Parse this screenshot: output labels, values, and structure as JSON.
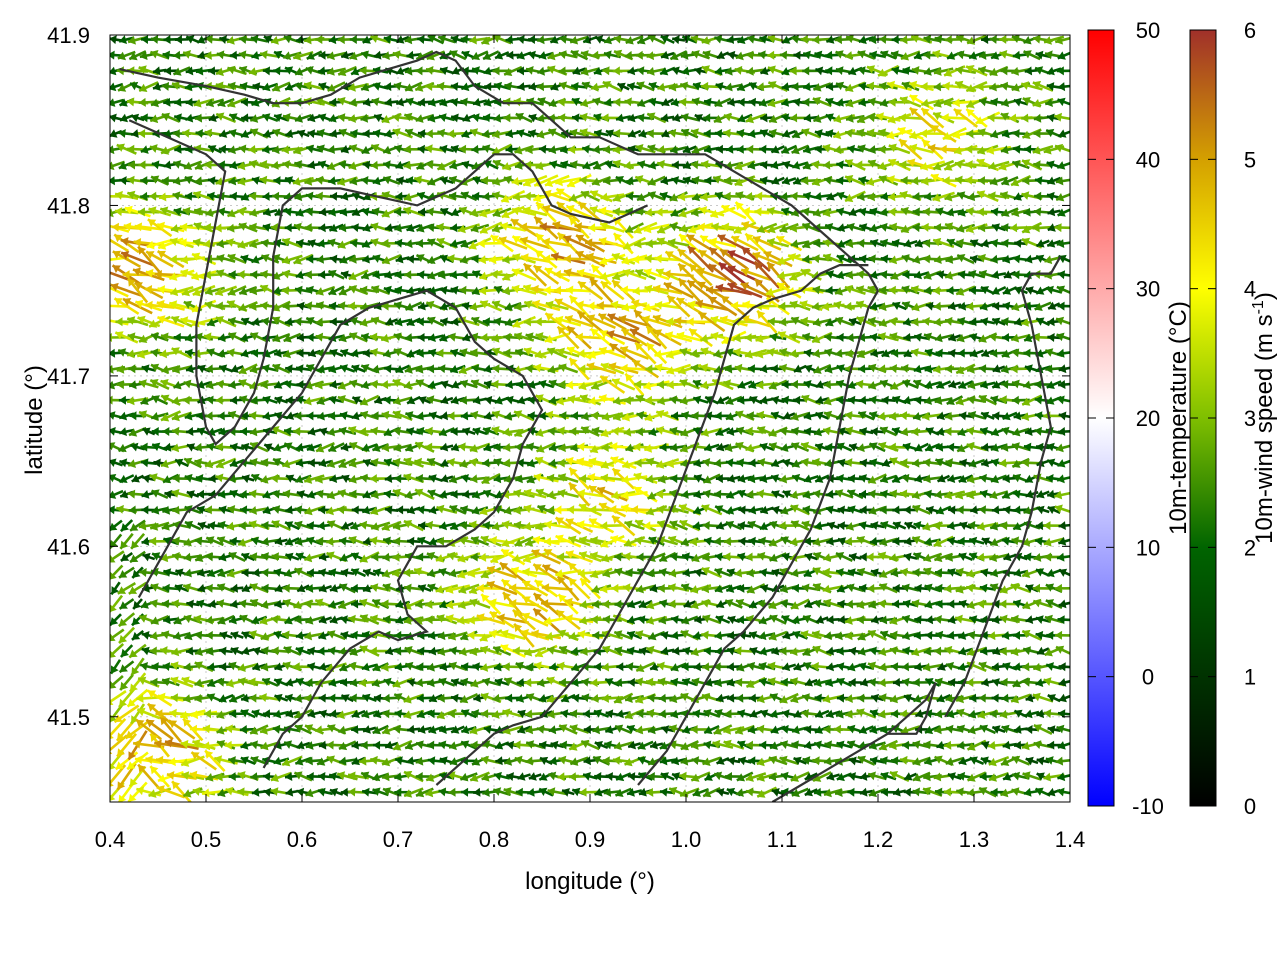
{
  "chart_data": {
    "type": "vector-field",
    "xlabel": "longitude (°)",
    "ylabel": "latitude (°)",
    "xlim": [
      0.4,
      1.4
    ],
    "ylim": [
      41.45,
      41.9
    ],
    "x_ticks": [
      "0.4",
      "0.5",
      "0.6",
      "0.7",
      "0.8",
      "0.9",
      "1.0",
      "1.1",
      "1.2",
      "1.3",
      "1.4"
    ],
    "y_ticks": [
      "41.5",
      "41.6",
      "41.7",
      "41.8",
      "41.9"
    ],
    "grid": true,
    "series": [
      {
        "colorbar_label": "10m-temperature (°C)",
        "range": [
          -10,
          50
        ],
        "ticks": [
          "-10",
          "0",
          "10",
          "20",
          "30",
          "40",
          "50"
        ],
        "colors": [
          "#0000ff",
          "#ffffff",
          "#ff0000"
        ]
      },
      {
        "colorbar_label_main": "10m-wind speed (m s",
        "colorbar_label_sup": "-1",
        "colorbar_label_end": ")",
        "range": [
          0,
          6
        ],
        "ticks": [
          "0",
          "1",
          "2",
          "3",
          "4",
          "5",
          "6"
        ],
        "colors": [
          "#000000",
          "#006400",
          "#7fbf00",
          "#ffff00",
          "#d4a000",
          "#a0302a"
        ]
      }
    ],
    "wind_field": {
      "grid_step_deg": 0.0115,
      "prevailing_direction": "westward",
      "strong_zones": [
        {
          "lon": 0.87,
          "lat": 41.78,
          "speed": 5.0
        },
        {
          "lon": 1.05,
          "lat": 41.76,
          "speed": 5.6
        },
        {
          "lon": 0.43,
          "lat": 41.76,
          "speed": 5.2
        },
        {
          "lon": 0.93,
          "lat": 41.72,
          "speed": 4.8
        },
        {
          "lon": 0.45,
          "lat": 41.48,
          "speed": 5.0
        },
        {
          "lon": 0.84,
          "lat": 41.57,
          "speed": 4.8
        },
        {
          "lon": 0.92,
          "lat": 41.63,
          "speed": 4.2
        },
        {
          "lon": 1.26,
          "lat": 41.84,
          "speed": 4.2
        }
      ],
      "base_speed": 2.2
    },
    "contours": [
      [
        [
          0.41,
          41.88
        ],
        [
          0.45,
          41.875
        ],
        [
          0.5,
          41.87
        ],
        [
          0.54,
          41.865
        ],
        [
          0.57,
          41.86
        ],
        [
          0.6,
          41.86
        ],
        [
          0.63,
          41.865
        ],
        [
          0.66,
          41.875
        ],
        [
          0.69,
          41.88
        ],
        [
          0.72,
          41.885
        ],
        [
          0.74,
          41.89
        ],
        [
          0.76,
          41.885
        ],
        [
          0.78,
          41.87
        ],
        [
          0.81,
          41.86
        ],
        [
          0.84,
          41.86
        ],
        [
          0.86,
          41.85
        ],
        [
          0.88,
          41.84
        ],
        [
          0.91,
          41.84
        ],
        [
          0.95,
          41.83
        ],
        [
          0.99,
          41.83
        ],
        [
          1.02,
          41.83
        ],
        [
          1.05,
          41.82
        ],
        [
          1.08,
          41.81
        ],
        [
          1.11,
          41.8
        ],
        [
          1.13,
          41.79
        ],
        [
          1.15,
          41.78
        ],
        [
          1.17,
          41.77
        ],
        [
          1.19,
          41.76
        ],
        [
          1.2,
          41.75
        ]
      ],
      [
        [
          0.42,
          41.85
        ],
        [
          0.46,
          41.84
        ],
        [
          0.5,
          41.83
        ],
        [
          0.52,
          41.82
        ],
        [
          0.51,
          41.79
        ],
        [
          0.5,
          41.76
        ],
        [
          0.49,
          41.73
        ],
        [
          0.49,
          41.7
        ],
        [
          0.5,
          41.67
        ],
        [
          0.51,
          41.66
        ],
        [
          0.53,
          41.67
        ],
        [
          0.55,
          41.69
        ],
        [
          0.56,
          41.71
        ],
        [
          0.57,
          41.74
        ],
        [
          0.57,
          41.77
        ],
        [
          0.58,
          41.8
        ],
        [
          0.6,
          41.81
        ],
        [
          0.64,
          41.81
        ],
        [
          0.68,
          41.805
        ],
        [
          0.72,
          41.8
        ],
        [
          0.76,
          41.81
        ],
        [
          0.78,
          41.82
        ],
        [
          0.8,
          41.83
        ],
        [
          0.82,
          41.83
        ],
        [
          0.84,
          41.82
        ],
        [
          0.86,
          41.8
        ],
        [
          0.88,
          41.795
        ],
        [
          0.92,
          41.79
        ],
        [
          0.96,
          41.8
        ]
      ],
      [
        [
          0.43,
          41.57
        ],
        [
          0.45,
          41.59
        ],
        [
          0.47,
          41.61
        ],
        [
          0.48,
          41.62
        ],
        [
          0.51,
          41.63
        ],
        [
          0.54,
          41.65
        ],
        [
          0.57,
          41.67
        ],
        [
          0.6,
          41.69
        ],
        [
          0.62,
          41.71
        ],
        [
          0.64,
          41.73
        ],
        [
          0.67,
          41.74
        ],
        [
          0.7,
          41.745
        ],
        [
          0.73,
          41.75
        ],
        [
          0.76,
          41.74
        ],
        [
          0.78,
          41.72
        ],
        [
          0.8,
          41.71
        ],
        [
          0.83,
          41.7
        ],
        [
          0.85,
          41.68
        ],
        [
          0.83,
          41.66
        ],
        [
          0.82,
          41.64
        ],
        [
          0.8,
          41.62
        ],
        [
          0.78,
          41.61
        ],
        [
          0.75,
          41.6
        ],
        [
          0.72,
          41.6
        ],
        [
          0.7,
          41.58
        ],
        [
          0.71,
          41.56
        ],
        [
          0.73,
          41.55
        ],
        [
          0.7,
          41.545
        ],
        [
          0.68,
          41.55
        ],
        [
          0.65,
          41.54
        ],
        [
          0.62,
          41.52
        ],
        [
          0.6,
          41.5
        ],
        [
          0.58,
          41.49
        ],
        [
          0.56,
          41.47
        ]
      ],
      [
        [
          0.74,
          41.46
        ],
        [
          0.76,
          41.47
        ],
        [
          0.78,
          41.48
        ],
        [
          0.8,
          41.49
        ],
        [
          0.82,
          41.495
        ],
        [
          0.85,
          41.5
        ],
        [
          0.88,
          41.52
        ],
        [
          0.91,
          41.54
        ],
        [
          0.93,
          41.56
        ],
        [
          0.95,
          41.58
        ],
        [
          0.97,
          41.6
        ],
        [
          0.99,
          41.63
        ],
        [
          1.01,
          41.66
        ],
        [
          1.03,
          41.69
        ],
        [
          1.04,
          41.71
        ],
        [
          1.05,
          41.73
        ],
        [
          1.07,
          41.74
        ],
        [
          1.09,
          41.745
        ],
        [
          1.12,
          41.75
        ],
        [
          1.14,
          41.76
        ],
        [
          1.16,
          41.765
        ],
        [
          1.19,
          41.765
        ]
      ],
      [
        [
          0.95,
          41.46
        ],
        [
          0.98,
          41.48
        ],
        [
          1.0,
          41.5
        ],
        [
          1.02,
          41.52
        ],
        [
          1.04,
          41.54
        ],
        [
          1.06,
          41.55
        ],
        [
          1.09,
          41.57
        ],
        [
          1.11,
          41.59
        ],
        [
          1.13,
          41.61
        ],
        [
          1.15,
          41.64
        ],
        [
          1.16,
          41.67
        ],
        [
          1.17,
          41.7
        ],
        [
          1.18,
          41.72
        ],
        [
          1.19,
          41.74
        ],
        [
          1.2,
          41.75
        ]
      ],
      [
        [
          1.09,
          41.45
        ],
        [
          1.12,
          41.46
        ],
        [
          1.15,
          41.47
        ],
        [
          1.18,
          41.48
        ],
        [
          1.21,
          41.49
        ],
        [
          1.23,
          41.5
        ],
        [
          1.25,
          41.51
        ],
        [
          1.26,
          41.52
        ],
        [
          1.25,
          41.5
        ],
        [
          1.24,
          41.49
        ],
        [
          1.21,
          41.49
        ]
      ],
      [
        [
          1.27,
          41.5
        ],
        [
          1.29,
          41.52
        ],
        [
          1.31,
          41.55
        ],
        [
          1.33,
          41.58
        ],
        [
          1.35,
          41.6
        ],
        [
          1.36,
          41.62
        ],
        [
          1.37,
          41.65
        ],
        [
          1.38,
          41.67
        ],
        [
          1.37,
          41.7
        ],
        [
          1.36,
          41.73
        ],
        [
          1.35,
          41.75
        ],
        [
          1.36,
          41.76
        ],
        [
          1.38,
          41.76
        ],
        [
          1.39,
          41.77
        ]
      ]
    ]
  }
}
